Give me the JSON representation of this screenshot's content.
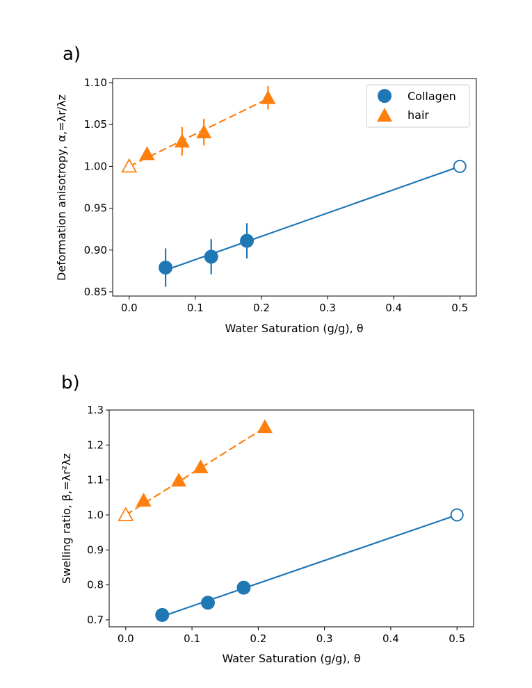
{
  "chart_data": [
    {
      "type": "scatter",
      "panel_label": "a)",
      "xlabel": "Water Saturation (g/g), θ",
      "ylabel": "Deformation anisotropy, α,=λr/λz",
      "xlim": [
        -0.025,
        0.525
      ],
      "ylim": [
        0.845,
        1.105
      ],
      "xticks": [
        "0.0",
        "0.1",
        "0.2",
        "0.3",
        "0.4",
        "0.5"
      ],
      "yticks": [
        "0.85",
        "0.90",
        "0.95",
        "1.00",
        "1.05",
        "1.10"
      ],
      "grid": false,
      "legend": {
        "placement": "top-right",
        "entries": [
          "Collagen",
          "hair"
        ]
      },
      "series": [
        {
          "name": "Collagen",
          "color": "#1f77b4",
          "marker": "circle",
          "line_style": "solid",
          "points": [
            {
              "x": 0.055,
              "y": 0.879,
              "err": 0.023
            },
            {
              "x": 0.124,
              "y": 0.892,
              "err": 0.021
            },
            {
              "x": 0.178,
              "y": 0.911,
              "err": 0.021
            }
          ],
          "open_point": {
            "x": 0.5,
            "y": 1.0
          },
          "fit_line": {
            "x0": 0.055,
            "y0": 0.876,
            "x1": 0.5,
            "y1": 1.0
          }
        },
        {
          "name": "hair",
          "color": "#ff7f0e",
          "marker": "triangle",
          "line_style": "dashed",
          "points": [
            {
              "x": 0.027,
              "y": 1.015,
              "err": 0.003
            },
            {
              "x": 0.08,
              "y": 1.03,
              "err": 0.017
            },
            {
              "x": 0.113,
              "y": 1.041,
              "err": 0.016
            },
            {
              "x": 0.21,
              "y": 1.082,
              "err": 0.014
            }
          ],
          "open_point": {
            "x": 0.0,
            "y": 1.0
          },
          "fit_line": {
            "x0": 0.0,
            "y0": 1.0,
            "x1": 0.21,
            "y1": 1.081
          }
        }
      ]
    },
    {
      "type": "scatter",
      "panel_label": "b)",
      "xlabel": "Water Saturation (g/g), θ",
      "ylabel": "Swelling ratio, β,=λr²λz",
      "xlim": [
        -0.025,
        0.525
      ],
      "ylim": [
        0.68,
        1.3
      ],
      "xticks": [
        "0.0",
        "0.1",
        "0.2",
        "0.3",
        "0.4",
        "0.5"
      ],
      "yticks": [
        "0.7",
        "0.8",
        "0.9",
        "1.0",
        "1.1",
        "1.2",
        "1.3"
      ],
      "grid": false,
      "legend": null,
      "series": [
        {
          "color": "#1f77b4",
          "marker": "circle",
          "line_style": "solid",
          "points": [
            {
              "x": 0.055,
              "y": 0.714,
              "err": 0.012
            },
            {
              "x": 0.124,
              "y": 0.749,
              "err": 0.01
            },
            {
              "x": 0.178,
              "y": 0.792,
              "err": 0.01
            }
          ],
          "open_point": {
            "x": 0.5,
            "y": 1.0
          },
          "fit_line": {
            "x0": 0.055,
            "y0": 0.71,
            "x1": 0.5,
            "y1": 1.0
          }
        },
        {
          "color": "#ff7f0e",
          "marker": "triangle",
          "line_style": "dashed",
          "points": [
            {
              "x": 0.027,
              "y": 1.042,
              "err": 0.008
            },
            {
              "x": 0.08,
              "y": 1.099,
              "err": 0.008
            },
            {
              "x": 0.113,
              "y": 1.137,
              "err": 0.008
            },
            {
              "x": 0.21,
              "y": 1.252,
              "err": 0.008
            }
          ],
          "open_point": {
            "x": 0.0,
            "y": 1.0
          },
          "fit_line": {
            "x0": 0.0,
            "y0": 1.0,
            "x1": 0.21,
            "y1": 1.25
          }
        }
      ]
    }
  ]
}
